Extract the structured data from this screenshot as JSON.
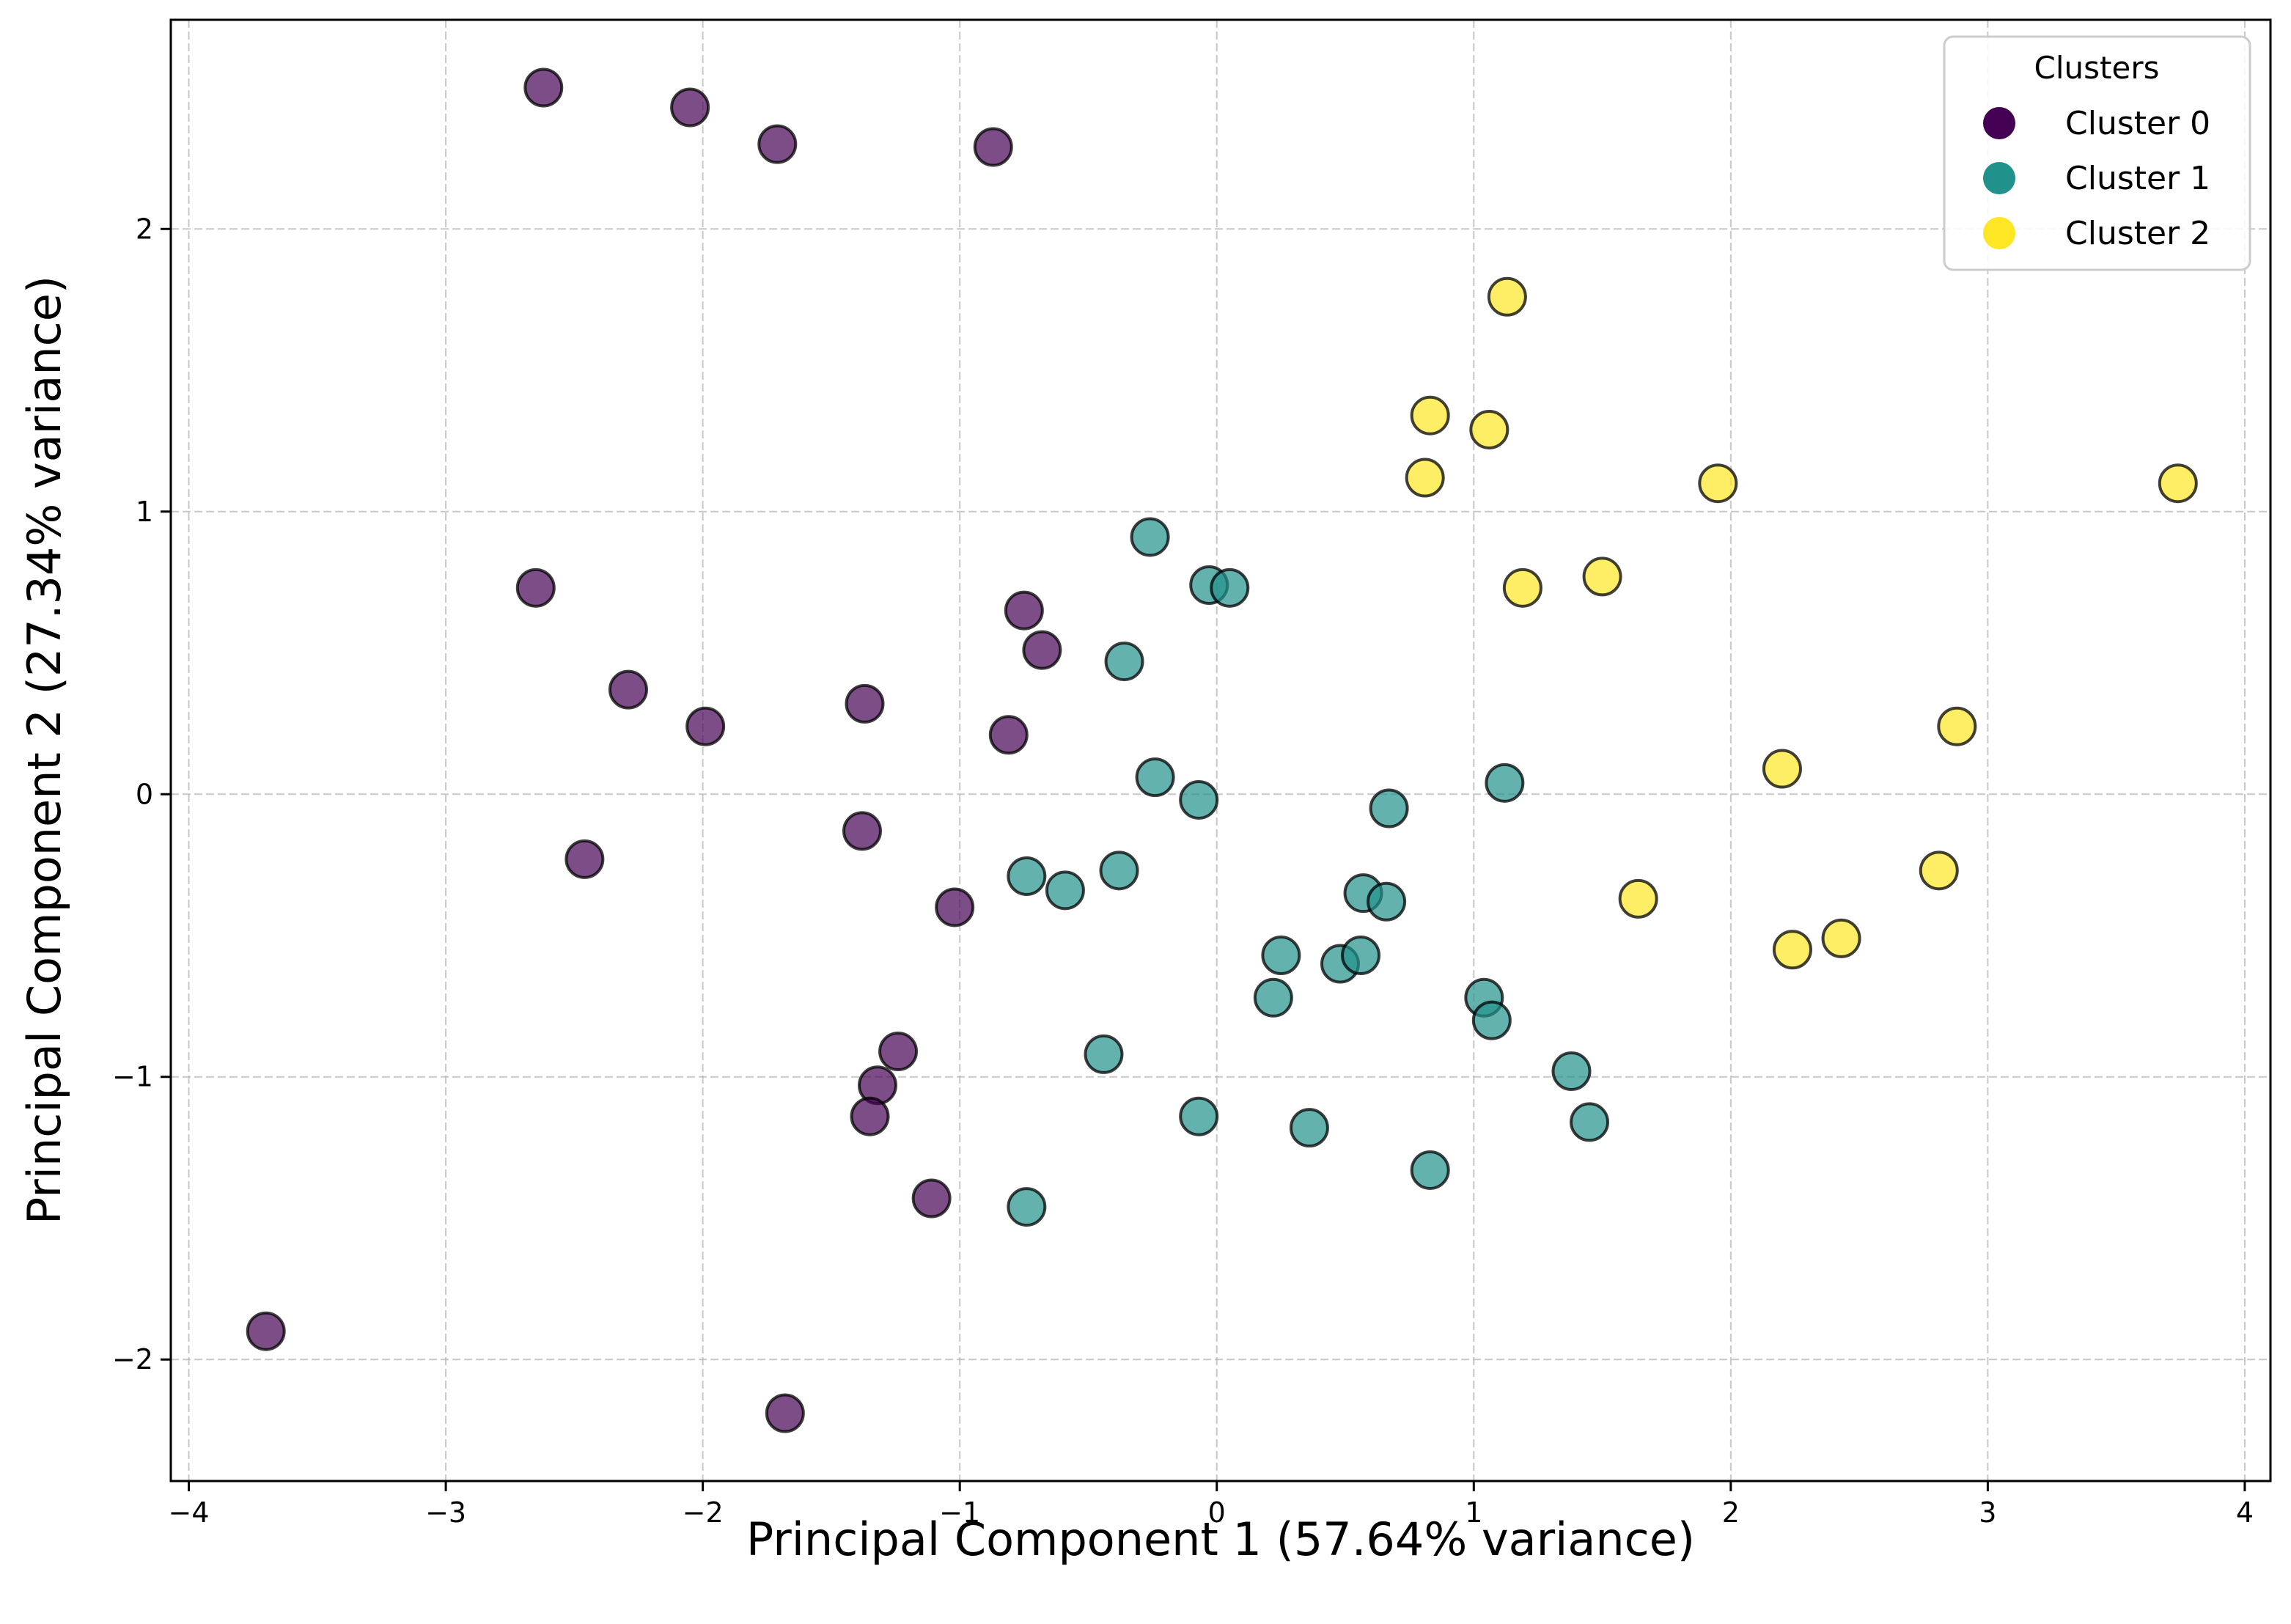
{
  "chart_data": {
    "type": "scatter",
    "title": "",
    "xlabel": "Principal Component 1 (57.64% variance)",
    "ylabel": "Principal Component 2 (27.34% variance)",
    "xlim": [
      -4.07,
      4.1
    ],
    "ylim": [
      -2.43,
      2.74
    ],
    "grid": true,
    "legend": {
      "title": "Clusters",
      "placement": "top-right",
      "entries": [
        {
          "label": "Cluster 0",
          "color": "#440154"
        },
        {
          "label": "Cluster 1",
          "color": "#21918c"
        },
        {
          "label": "Cluster 2",
          "color": "#fde725"
        }
      ]
    },
    "x_ticks": [
      {
        "value": -4,
        "label": "−4"
      },
      {
        "value": -3,
        "label": "−3"
      },
      {
        "value": -2,
        "label": "−2"
      },
      {
        "value": -1,
        "label": "−1"
      },
      {
        "value": 0,
        "label": "0"
      },
      {
        "value": 1,
        "label": "1"
      },
      {
        "value": 2,
        "label": "2"
      },
      {
        "value": 3,
        "label": "3"
      },
      {
        "value": 4,
        "label": "4"
      }
    ],
    "y_ticks": [
      {
        "value": -2,
        "label": "−2"
      },
      {
        "value": -1,
        "label": "−1"
      },
      {
        "value": 0,
        "label": "0"
      },
      {
        "value": 1,
        "label": "1"
      },
      {
        "value": 2,
        "label": "2"
      }
    ],
    "series": [
      {
        "name": "Cluster 0",
        "color": "#440154",
        "points": [
          [
            -2.62,
            2.5
          ],
          [
            -2.05,
            2.43
          ],
          [
            -1.71,
            2.3
          ],
          [
            -0.87,
            2.29
          ],
          [
            -2.65,
            0.73
          ],
          [
            -2.29,
            0.37
          ],
          [
            -1.99,
            0.24
          ],
          [
            -2.46,
            -0.23
          ],
          [
            -1.37,
            0.32
          ],
          [
            -1.38,
            -0.13
          ],
          [
            -0.75,
            0.65
          ],
          [
            -0.68,
            0.51
          ],
          [
            -0.81,
            0.21
          ],
          [
            -1.02,
            -0.4
          ],
          [
            -1.24,
            -0.91
          ],
          [
            -1.32,
            -1.03
          ],
          [
            -1.35,
            -1.14
          ],
          [
            -1.11,
            -1.43
          ],
          [
            -3.7,
            -1.9
          ],
          [
            -1.68,
            -2.19
          ]
        ]
      },
      {
        "name": "Cluster 1",
        "color": "#21918c",
        "points": [
          [
            -0.26,
            0.91
          ],
          [
            -0.03,
            0.74
          ],
          [
            0.05,
            0.73
          ],
          [
            -0.36,
            0.47
          ],
          [
            -0.24,
            0.06
          ],
          [
            -0.07,
            -0.02
          ],
          [
            1.12,
            0.04
          ],
          [
            0.67,
            -0.05
          ],
          [
            -0.74,
            -0.29
          ],
          [
            -0.59,
            -0.34
          ],
          [
            -0.38,
            -0.27
          ],
          [
            0.57,
            -0.35
          ],
          [
            0.66,
            -0.38
          ],
          [
            0.25,
            -0.57
          ],
          [
            0.48,
            -0.6
          ],
          [
            0.56,
            -0.57
          ],
          [
            0.22,
            -0.72
          ],
          [
            1.04,
            -0.72
          ],
          [
            1.07,
            -0.8
          ],
          [
            -0.44,
            -0.92
          ],
          [
            1.38,
            -0.98
          ],
          [
            -0.07,
            -1.14
          ],
          [
            0.36,
            -1.18
          ],
          [
            1.45,
            -1.16
          ],
          [
            0.83,
            -1.33
          ],
          [
            -0.74,
            -1.46
          ]
        ]
      },
      {
        "name": "Cluster 2",
        "color": "#fde725",
        "points": [
          [
            1.13,
            1.76
          ],
          [
            0.83,
            1.34
          ],
          [
            1.06,
            1.29
          ],
          [
            0.81,
            1.12
          ],
          [
            1.95,
            1.1
          ],
          [
            3.74,
            1.1
          ],
          [
            1.19,
            0.73
          ],
          [
            1.5,
            0.77
          ],
          [
            2.88,
            0.24
          ],
          [
            2.2,
            0.09
          ],
          [
            1.64,
            -0.37
          ],
          [
            2.81,
            -0.27
          ],
          [
            2.43,
            -0.51
          ],
          [
            2.24,
            -0.55
          ]
        ]
      }
    ]
  }
}
